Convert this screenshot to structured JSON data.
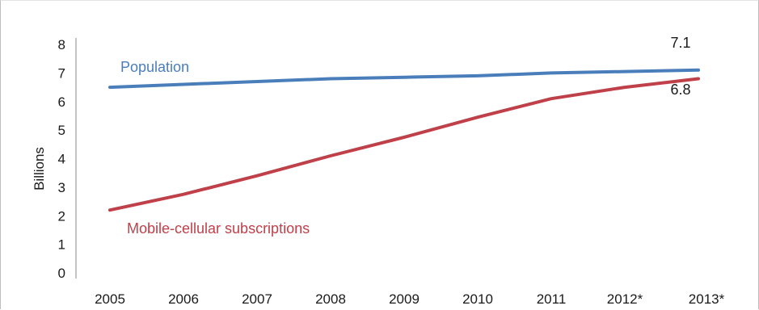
{
  "chart_data": {
    "type": "line",
    "title": "",
    "xlabel": "",
    "ylabel": "Billions",
    "ylim": [
      0,
      8
    ],
    "yticks": [
      0,
      1,
      2,
      3,
      4,
      5,
      6,
      7,
      8
    ],
    "categories": [
      "2005",
      "2006",
      "2007",
      "2008",
      "2009",
      "2010",
      "2011",
      "2012*",
      "2013*"
    ],
    "grid": false,
    "legend": "inline",
    "series": [
      {
        "name": "Population",
        "color": "#4a7ebb",
        "values": [
          6.5,
          6.6,
          6.7,
          6.8,
          6.85,
          6.9,
          7.0,
          7.05,
          7.1
        ],
        "end_label": "7.1"
      },
      {
        "name": "Mobile-cellular subscriptions",
        "color": "#c0404a",
        "values": [
          2.2,
          2.75,
          3.4,
          4.1,
          4.75,
          5.45,
          6.1,
          6.5,
          6.8
        ],
        "end_label": "6.8"
      }
    ]
  }
}
